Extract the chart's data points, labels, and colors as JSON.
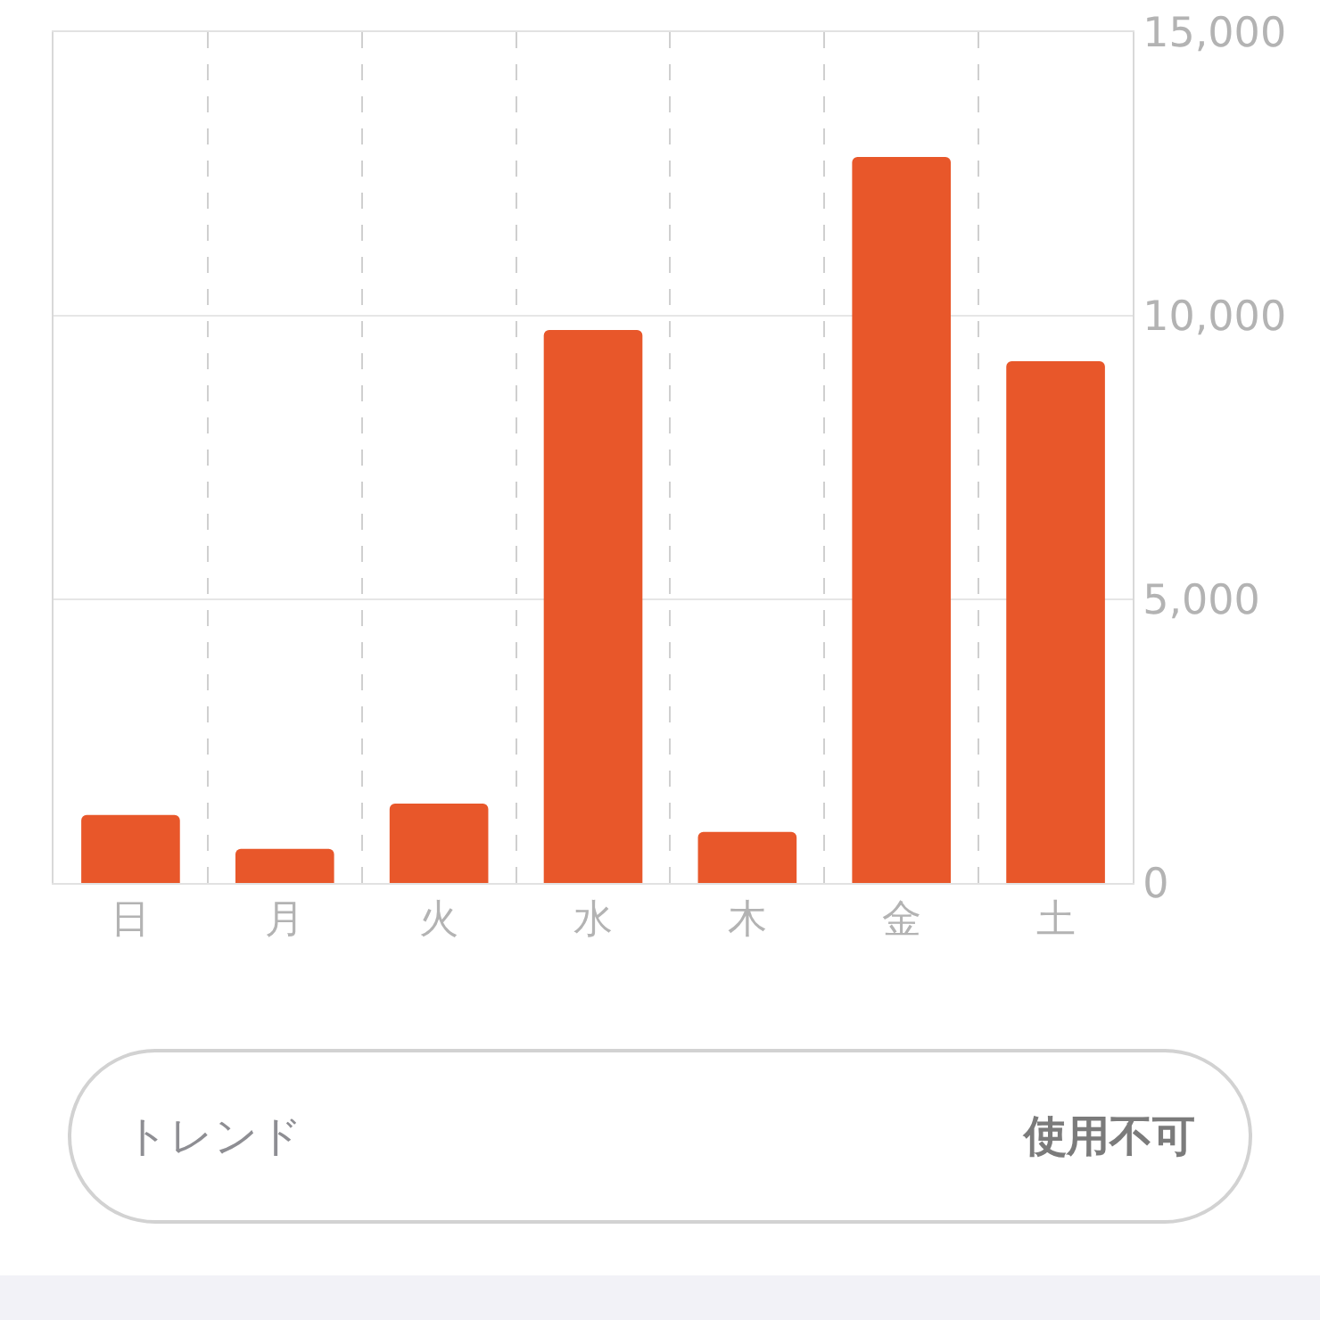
{
  "chart_data": [
    {
      "type": "bar",
      "categories": [
        "日",
        "月",
        "火",
        "水",
        "木",
        "金",
        "土"
      ],
      "values": [
        1200,
        600,
        1400,
        9750,
        900,
        12800,
        9200
      ],
      "color": "#e8572a",
      "ylim": [
        0,
        15000
      ],
      "yticks": [
        0,
        {
          "value": 5000,
          "label": "5,000"
        },
        {
          "value": 10000,
          "label": "10,000"
        },
        {
          "value": 15000,
          "label": "15,000"
        }
      ],
      "grid": true
    },
    {
      "type": "other",
      "annotations": [
        "トレンド",
        "使用不可"
      ]
    }
  ]
}
